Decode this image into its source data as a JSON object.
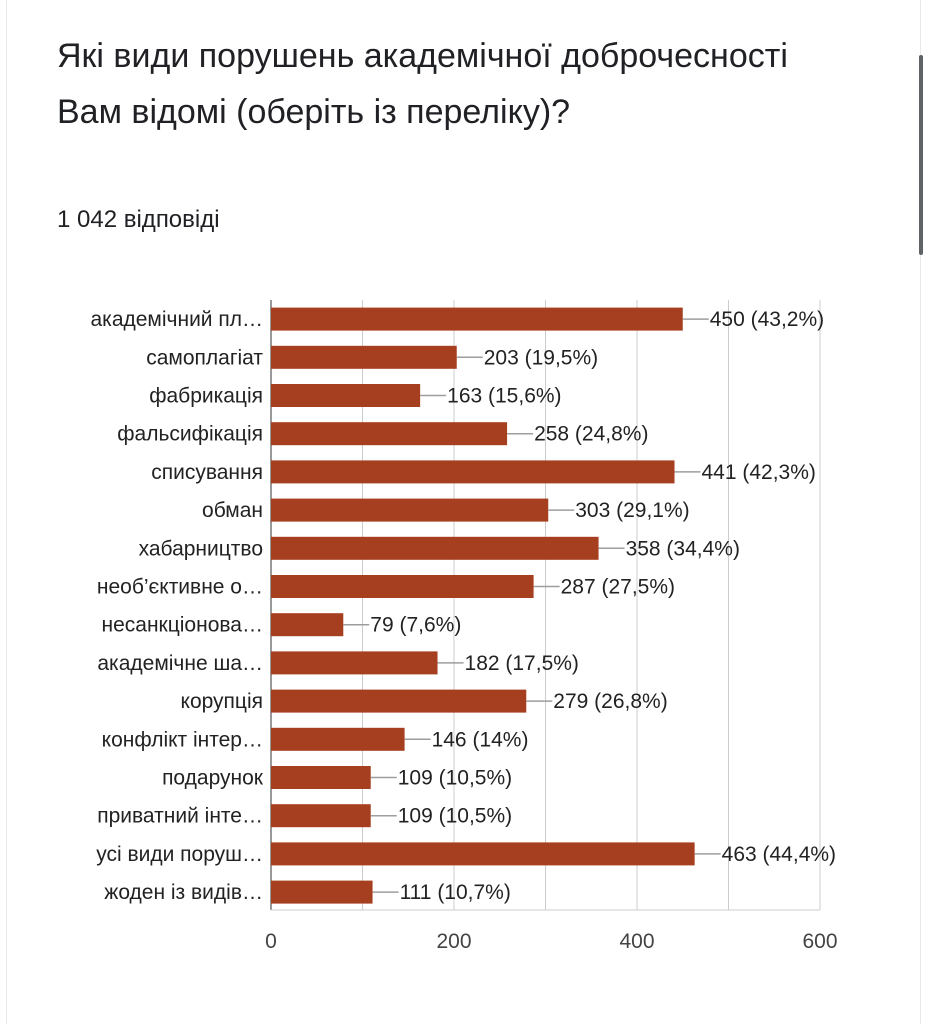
{
  "question": {
    "title": "Які види порушень академічної доброчесності Вам відомі (оберіть із переліку)?",
    "response_count": "1 042 відповіді"
  },
  "colors": {
    "bar": "#a63f1f",
    "grid": "#cccccc",
    "leader": "#9e9e9e"
  },
  "chart_data": {
    "type": "bar",
    "orientation": "horizontal",
    "categories": [
      "академічний пл…",
      "самоплагіат",
      "фабрикація",
      "фальсифікація",
      "списування",
      "обман",
      "хабарництво",
      "необ’єктивне о…",
      "несанкціонова…",
      "академічне ша…",
      "корупція",
      "конфлікт інтер…",
      "подарунок",
      "приватний інте…",
      "усі види поруш…",
      "жоден із видів…"
    ],
    "values": [
      450,
      203,
      163,
      258,
      441,
      303,
      358,
      287,
      79,
      182,
      279,
      146,
      109,
      109,
      463,
      111
    ],
    "value_labels": [
      "450 (43,2%)",
      "203 (19,5%)",
      "163 (15,6%)",
      "258 (24,8%)",
      "441 (42,3%)",
      "303 (29,1%)",
      "358 (34,4%)",
      "287 (27,5%)",
      "79 (7,6%)",
      "182 (17,5%)",
      "279 (26,8%)",
      "146 (14%)",
      "109 (10,5%)",
      "109 (10,5%)",
      "463 (44,4%)",
      "111 (10,7%)"
    ],
    "xlim": [
      0,
      600
    ],
    "x_ticks": [
      "0",
      "200",
      "400",
      "600"
    ],
    "grid": true
  }
}
